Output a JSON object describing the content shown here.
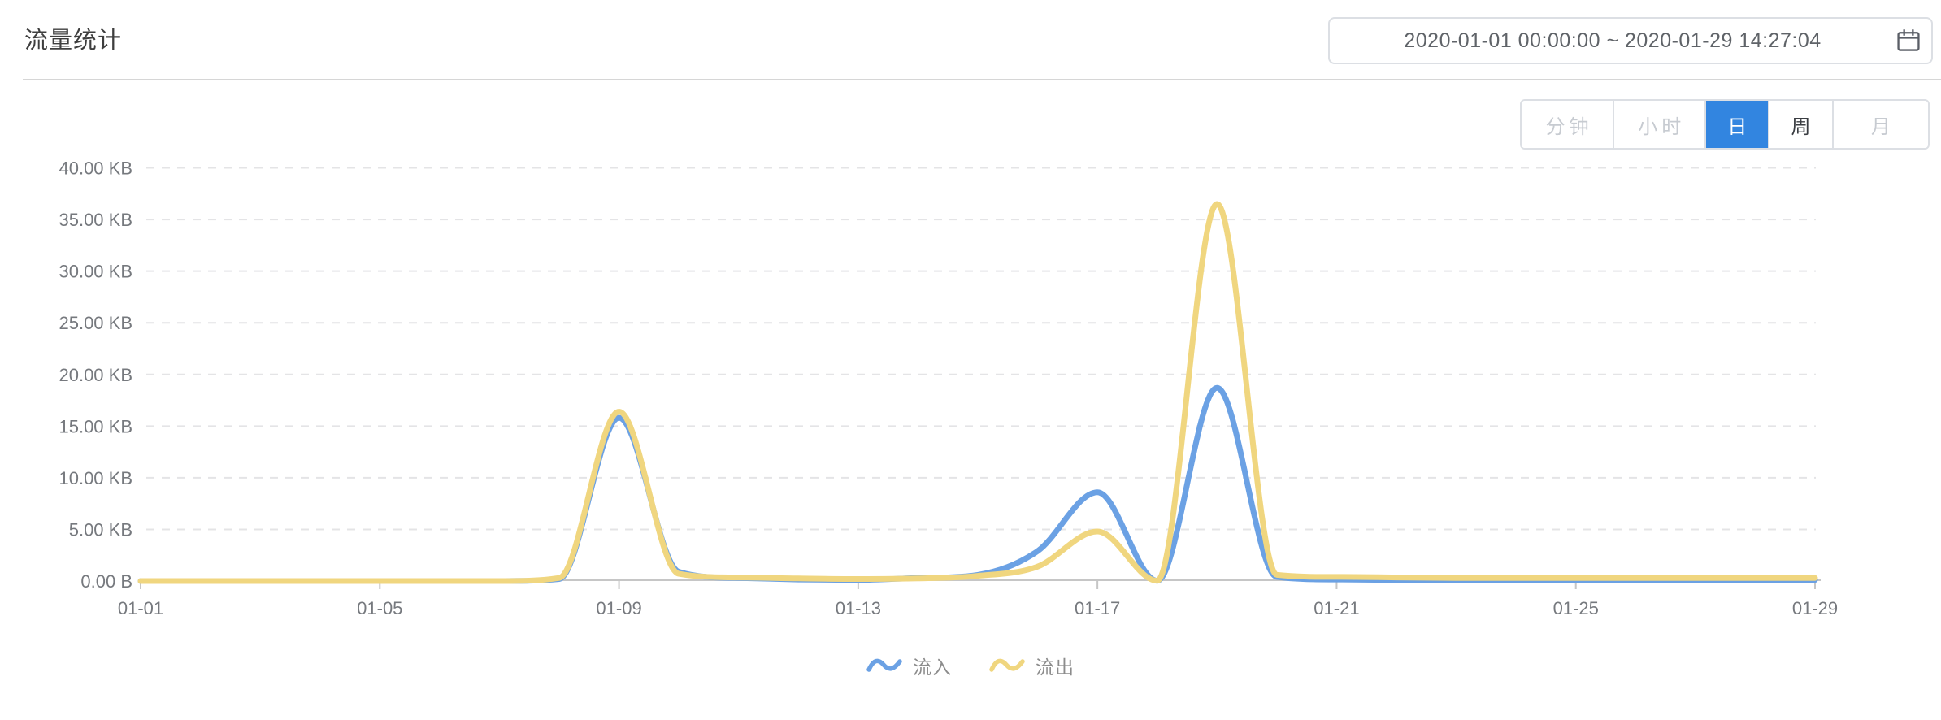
{
  "header": {
    "title": "流量统计",
    "date_range": {
      "value": "2020-01-01 00:00:00  ~  2020-01-29 14:27:04",
      "icon": "calendar-icon"
    }
  },
  "granularity": {
    "options": [
      {
        "key": "minute",
        "label": "分钟",
        "state": "disabled"
      },
      {
        "key": "hour",
        "label": "小时",
        "state": "disabled"
      },
      {
        "key": "day",
        "label": "日",
        "state": "active"
      },
      {
        "key": "week",
        "label": "周",
        "state": "normal"
      },
      {
        "key": "month",
        "label": "月",
        "state": "disabled"
      }
    ],
    "active_bg": "#3285e0"
  },
  "chart_data": {
    "type": "line",
    "title": "流量统计",
    "smooth": true,
    "grid": "horizontal-dashed",
    "legend_position": "bottom",
    "ylim": [
      0,
      40
    ],
    "y_unit": "KB",
    "y_ticks": [
      "0.00 B",
      "5.00 KB",
      "10.00 KB",
      "15.00 KB",
      "20.00 KB",
      "25.00 KB",
      "30.00 KB",
      "35.00 KB",
      "40.00 KB"
    ],
    "x": [
      "01-01",
      "01-02",
      "01-03",
      "01-04",
      "01-05",
      "01-06",
      "01-07",
      "01-08",
      "01-09",
      "01-10",
      "01-11",
      "01-12",
      "01-13",
      "01-14",
      "01-15",
      "01-16",
      "01-17",
      "01-18",
      "01-19",
      "01-20",
      "01-21",
      "01-22",
      "01-23",
      "01-24",
      "01-25",
      "01-26",
      "01-27",
      "01-28",
      "01-29"
    ],
    "x_tick_labels": [
      "01-01",
      "01-05",
      "01-09",
      "01-13",
      "01-17",
      "01-21",
      "01-25",
      "01-29"
    ],
    "series": [
      {
        "name": "流入",
        "color": "#6ba1e4",
        "values": [
          0,
          0,
          0,
          0,
          0,
          0,
          0,
          0.2,
          15.8,
          0.9,
          0.3,
          0.15,
          0.1,
          0.3,
          0.6,
          2.9,
          8.6,
          0.02,
          18.7,
          0.4,
          0.15,
          0.1,
          0.1,
          0.1,
          0.1,
          0.1,
          0.1,
          0.1,
          0.1
        ]
      },
      {
        "name": "流出",
        "color": "#f0d67f",
        "values": [
          0,
          0,
          0,
          0,
          0,
          0,
          0,
          0.3,
          16.4,
          0.7,
          0.35,
          0.25,
          0.2,
          0.25,
          0.5,
          1.4,
          4.8,
          0.02,
          36.5,
          0.6,
          0.4,
          0.35,
          0.3,
          0.3,
          0.3,
          0.3,
          0.3,
          0.3,
          0.3
        ]
      }
    ]
  },
  "colors": {
    "axis_line": "#c6c6c6",
    "grid_line": "#e4e4e6",
    "axis_label": "#76797e",
    "legend_label": "#8c8c8c",
    "title": "#3e3e3e",
    "border": "#dcdfe4",
    "active_button": "#3285e0",
    "inflow": "#6ba1e4",
    "outflow": "#f0d67f"
  }
}
